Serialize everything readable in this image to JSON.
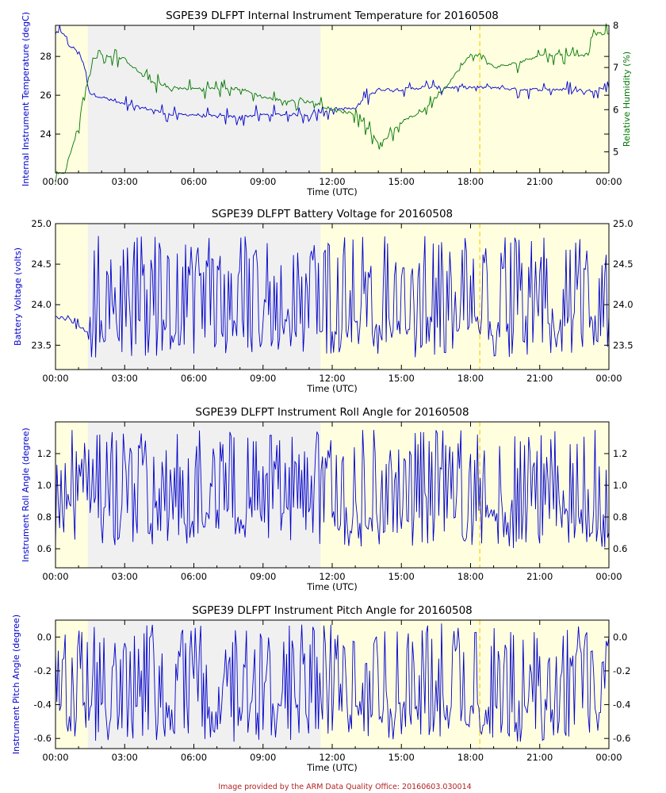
{
  "footer": "Image provided by the ARM Data Quality Office: 20160603.030014",
  "colors": {
    "series_primary": "#0000cc",
    "series_secondary": "#007700",
    "night_shade": "#f0f0f0",
    "day_shade": "#ffffe0",
    "solar_noon_line": "#ffd000",
    "footer_text": "#b22222"
  },
  "chart_data": [
    {
      "type": "line",
      "title": "SGPE39 DLFPT Internal Instrument Temperature for 20160508",
      "xlabel": "Time (UTC)",
      "ylabel": "Internal Instrument Temperature (degC)",
      "y2label": "Relative Humidity (%)",
      "xlim": [
        0,
        24
      ],
      "xticks": [
        "00:00",
        "03:00",
        "06:00",
        "09:00",
        "12:00",
        "15:00",
        "18:00",
        "21:00",
        "00:00"
      ],
      "ylim": [
        22.0,
        29.6
      ],
      "yticks": [
        24,
        26,
        28
      ],
      "y2lim": [
        4.5,
        8.0
      ],
      "y2ticks": [
        5,
        6,
        7,
        8
      ],
      "shading": {
        "night_start": 1.4,
        "night_end": 11.5,
        "marker": 18.4
      },
      "series": [
        {
          "name": "Internal Instrument Temperature",
          "axis": "left",
          "x": [
            0,
            0.4,
            0.5,
            1.0,
            1.3,
            1.4,
            1.5,
            2.0,
            2.5,
            3.0,
            4.0,
            5.0,
            6.0,
            7.0,
            8.0,
            9.0,
            10.0,
            11.0,
            11.5,
            12.0,
            13.0,
            13.5,
            14.0,
            15.0,
            16.0,
            17.0,
            18.0,
            19.0,
            20.0,
            21.0,
            22.0,
            23.0,
            24.0
          ],
          "y": [
            29.2,
            29.2,
            28.6,
            28.3,
            27.3,
            26.5,
            26.1,
            25.9,
            25.7,
            25.5,
            25.3,
            25.0,
            25.0,
            24.9,
            24.9,
            25.0,
            25.0,
            25.0,
            25.1,
            25.3,
            25.3,
            26.0,
            26.3,
            26.3,
            26.4,
            26.4,
            26.4,
            26.4,
            26.3,
            26.3,
            26.3,
            26.2,
            26.4
          ]
        },
        {
          "name": "Relative Humidity",
          "axis": "right",
          "x": [
            0,
            0.4,
            0.6,
            0.8,
            1.0,
            1.2,
            1.5,
            1.6,
            2.0,
            3.0,
            4.0,
            5.0,
            6.0,
            7.0,
            8.0,
            9.0,
            10.0,
            11.0,
            11.5,
            12.0,
            13.0,
            13.5,
            14.0,
            14.5,
            15.0,
            16.0,
            16.5,
            17.0,
            18.0,
            18.5,
            19.0,
            20.0,
            21.0,
            22.0,
            23.0,
            23.3,
            24.0
          ],
          "y": [
            4.5,
            4.5,
            4.9,
            5.2,
            5.6,
            6.3,
            6.8,
            7.2,
            7.3,
            7.2,
            6.7,
            6.5,
            6.5,
            6.5,
            6.5,
            6.3,
            6.2,
            6.2,
            6.1,
            6.0,
            5.9,
            5.6,
            5.2,
            5.4,
            5.7,
            6.0,
            6.3,
            6.6,
            7.3,
            7.3,
            7.0,
            7.1,
            7.3,
            7.3,
            7.3,
            7.8,
            7.8
          ]
        }
      ]
    },
    {
      "type": "line",
      "title": "SGPE39 DLFPT Battery Voltage for 20160508",
      "xlabel": "Time (UTC)",
      "ylabel": "Battery Voltage (volts)",
      "xlim": [
        0,
        24
      ],
      "xticks": [
        "00:00",
        "03:00",
        "06:00",
        "09:00",
        "12:00",
        "15:00",
        "18:00",
        "21:00",
        "00:00"
      ],
      "ylim": [
        23.2,
        25.0
      ],
      "yticks": [
        23.5,
        24.0,
        24.5,
        25.0
      ],
      "right_ticks_mirror": true,
      "shading": {
        "night_start": 1.4,
        "night_end": 11.5,
        "marker": 18.4
      },
      "series": [
        {
          "name": "Battery Voltage",
          "axis": "left",
          "x": [
            0,
            0.5,
            1.0,
            1.4,
            2.0,
            3.0,
            4.0,
            5.0,
            6.0,
            7.0,
            8.0,
            9.0,
            10.0,
            11.0,
            11.5,
            12.0,
            13.0,
            14.0,
            15.0,
            16.0,
            17.0,
            18.0,
            19.0,
            20.0,
            21.0,
            22.0,
            23.0,
            24.0
          ],
          "y": [
            23.85,
            23.82,
            23.75,
            23.65,
            23.9,
            24.1,
            24.2,
            24.2,
            24.2,
            24.2,
            24.2,
            24.2,
            24.2,
            24.1,
            24.0,
            23.9,
            24.0,
            23.9,
            23.9,
            23.8,
            23.9,
            23.9,
            23.9,
            23.9,
            23.9,
            23.9,
            23.9,
            23.9
          ],
          "oscillation": {
            "from": 1.5,
            "to": 24.0,
            "min": 23.35,
            "max": 24.85
          }
        }
      ]
    },
    {
      "type": "line",
      "title": "SGPE39 DLFPT Instrument Roll Angle for 20160508",
      "xlabel": "Time (UTC)",
      "ylabel": "Instrument Roll Angle (degree)",
      "xlim": [
        0,
        24
      ],
      "xticks": [
        "00:00",
        "03:00",
        "06:00",
        "09:00",
        "12:00",
        "15:00",
        "18:00",
        "21:00",
        "00:00"
      ],
      "ylim": [
        0.48,
        1.4
      ],
      "yticks": [
        0.6,
        0.8,
        1.0,
        1.2
      ],
      "right_ticks_mirror": true,
      "shading": {
        "night_start": 1.4,
        "night_end": 11.5,
        "marker": 18.4
      },
      "series": [
        {
          "name": "Instrument Roll Angle",
          "axis": "left",
          "x": [
            0,
            3,
            6,
            9,
            12,
            15,
            18,
            21,
            24
          ],
          "y": [
            0.94,
            0.97,
            0.97,
            0.97,
            0.96,
            0.96,
            0.96,
            0.96,
            0.96
          ],
          "oscillation": {
            "from": 0,
            "to": 24.0,
            "min": 0.6,
            "max": 1.35
          }
        }
      ]
    },
    {
      "type": "line",
      "title": "SGPE39 DLFPT Instrument Pitch Angle for 20160508",
      "xlabel": "Time (UTC)",
      "ylabel": "Instrument Pitch Angle (degree)",
      "xlim": [
        0,
        24
      ],
      "xticks": [
        "00:00",
        "03:00",
        "06:00",
        "09:00",
        "12:00",
        "15:00",
        "18:00",
        "21:00",
        "00:00"
      ],
      "ylim": [
        -0.66,
        0.1
      ],
      "yticks": [
        -0.6,
        -0.4,
        -0.2,
        0.0
      ],
      "ytick_labels": [
        "-0.6",
        "-0.4",
        "-0.2",
        "0.0"
      ],
      "right_ticks_mirror": true,
      "shading": {
        "night_start": 1.4,
        "night_end": 11.5,
        "marker": 18.4
      },
      "series": [
        {
          "name": "Instrument Pitch Angle",
          "axis": "left",
          "x": [
            0,
            3,
            6,
            9,
            12,
            15,
            18,
            21,
            24
          ],
          "y": [
            -0.3,
            -0.3,
            -0.3,
            -0.3,
            -0.3,
            -0.3,
            -0.3,
            -0.3,
            -0.3
          ],
          "oscillation": {
            "from": 0,
            "to": 24.0,
            "min": -0.62,
            "max": 0.08
          }
        }
      ]
    }
  ]
}
